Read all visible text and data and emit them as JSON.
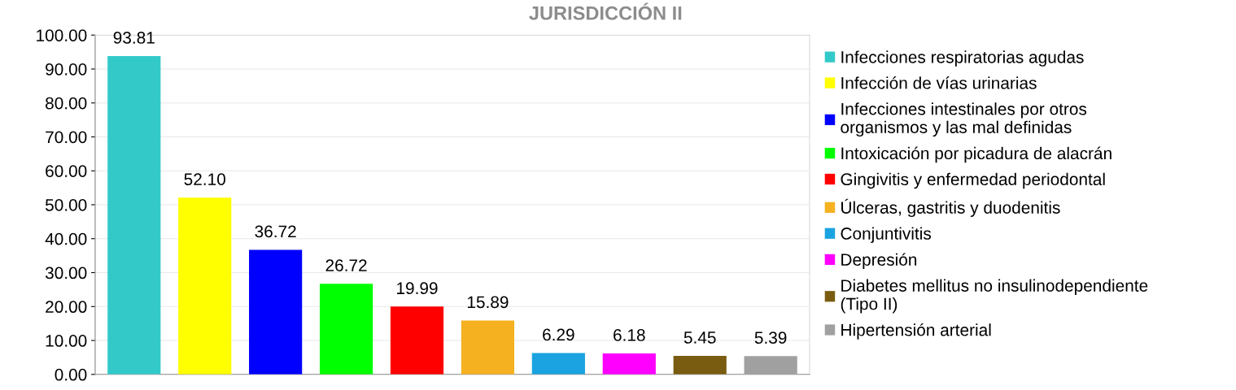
{
  "chart_data": {
    "type": "bar",
    "title": "JURISDICCIÓN II",
    "categories": [
      null,
      null,
      null,
      null,
      null,
      null,
      null,
      null,
      null,
      null
    ],
    "series": [
      {
        "name": "Infecciones respiratorias agudas",
        "color": "#33c9c9",
        "values": [
          93.81,
          null,
          null,
          null,
          null,
          null,
          null,
          null,
          null,
          null
        ]
      },
      {
        "name": "Infección de vías urinarias",
        "color": "#ffff00",
        "values": [
          null,
          52.1,
          null,
          null,
          null,
          null,
          null,
          null,
          null,
          null
        ],
        "value_labels": [
          null,
          "52.10",
          null,
          null,
          null,
          null,
          null,
          null,
          null,
          null
        ]
      },
      {
        "name": "Infecciones intestinales por otros\norganismos y las mal definidas",
        "color": "#0000ff",
        "values": [
          null,
          null,
          36.72,
          null,
          null,
          null,
          null,
          null,
          null,
          null
        ]
      },
      {
        "name": "Intoxicación por picadura de alacrán",
        "color": "#00ff00",
        "values": [
          null,
          null,
          null,
          26.72,
          null,
          null,
          null,
          null,
          null,
          null
        ]
      },
      {
        "name": "Gingivitis y enfermedad periodontal",
        "color": "#ff0000",
        "values": [
          null,
          null,
          null,
          null,
          19.99,
          null,
          null,
          null,
          null,
          null
        ]
      },
      {
        "name": "Úlceras, gastritis y duodenitis",
        "color": "#f5b120",
        "values": [
          null,
          null,
          null,
          null,
          null,
          15.89,
          null,
          null,
          null,
          null
        ]
      },
      {
        "name": "Conjuntivitis",
        "color": "#1aa3e0",
        "values": [
          null,
          null,
          null,
          null,
          null,
          null,
          6.29,
          null,
          null,
          null
        ]
      },
      {
        "name": "Depresión",
        "color": "#ff00ff",
        "values": [
          null,
          null,
          null,
          null,
          null,
          null,
          null,
          6.18,
          null,
          null
        ]
      },
      {
        "name": "Diabetes mellitus no insulinodependiente\n(Tipo II)",
        "color": "#7a5c10",
        "values": [
          null,
          null,
          null,
          null,
          null,
          null,
          null,
          null,
          5.45,
          null
        ]
      },
      {
        "name": "Hipertensión arterial",
        "color": "#a0a0a0",
        "values": [
          null,
          null,
          null,
          null,
          null,
          null,
          null,
          null,
          null,
          5.39
        ]
      }
    ],
    "ylim": [
      0,
      100
    ],
    "yticks": [
      {
        "value": 0,
        "label": "0.00"
      },
      {
        "value": 10,
        "label": "10.00"
      },
      {
        "value": 20,
        "label": "20.00"
      },
      {
        "value": 30,
        "label": "30.00"
      },
      {
        "value": 40,
        "label": "40.00"
      },
      {
        "value": 50,
        "label": "50.00"
      },
      {
        "value": 60,
        "label": "60.00"
      },
      {
        "value": 70,
        "label": "70.00"
      },
      {
        "value": 80,
        "label": "80.00"
      },
      {
        "value": 90,
        "label": "90.00"
      },
      {
        "value": 100,
        "label": "100.00"
      }
    ],
    "grid": "y",
    "legend": "right",
    "data_labels": true
  }
}
